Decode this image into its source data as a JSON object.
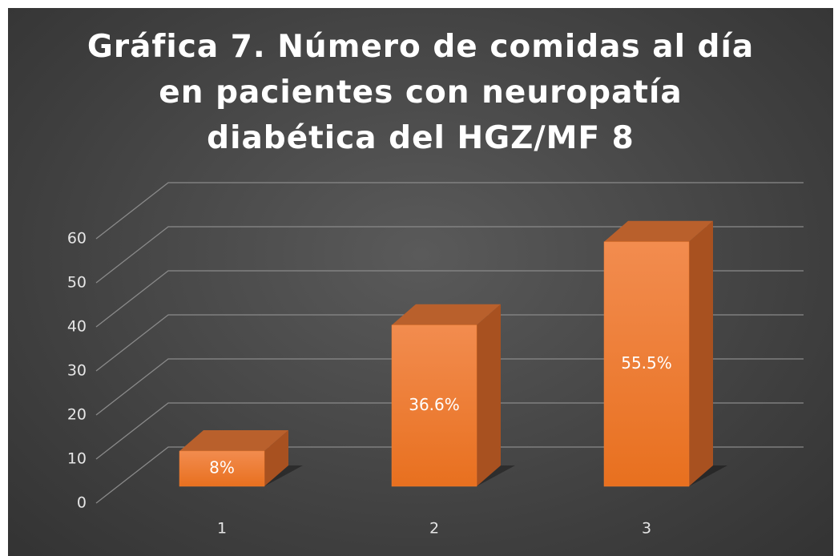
{
  "chart_data": {
    "type": "bar3d",
    "title": "Gráfica 7. Número de comidas al día en pacientes con neuropatía diabética del HGZ/MF 8",
    "categories": [
      "1",
      "2",
      "3"
    ],
    "values": [
      8,
      36.6,
      55.5
    ],
    "value_labels": [
      "8%",
      "36.6%",
      "55.5%"
    ],
    "color": "#ed7d31",
    "ylim": [
      0,
      60
    ],
    "yticks": [
      0,
      10,
      20,
      30,
      40,
      50,
      60
    ],
    "grid": true
  }
}
